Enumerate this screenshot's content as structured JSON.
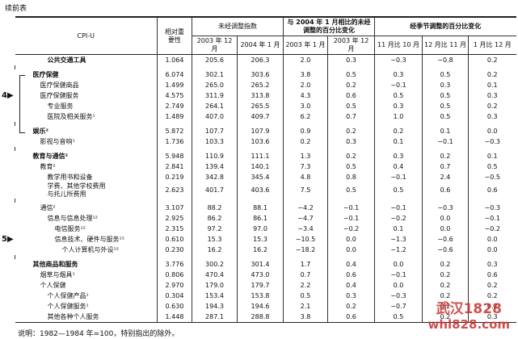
{
  "header": {
    "continued": "续前表"
  },
  "table": {
    "columns": {
      "item": "CPI-U",
      "weight": "相对重要性",
      "unadjusted_index": "未经调整指数",
      "pct_change_unadjusted": "与 2004 年 1 月相比的未经调整的百分比变化",
      "pct_change_seasonal": "经季节调整的百分比变化",
      "sub": [
        "2003 年 12 月",
        "2004 年 1 月",
        "2003 年 1 月",
        "2003 年 12 月",
        "11 月比 10 月",
        "12 月比 11 月",
        "1 月比 12 月"
      ]
    },
    "rows": [
      [
        "公共交通工具",
        "1.064",
        "205.6",
        "206.3",
        "2.0",
        "0.3",
        "−0.3",
        "−0.8",
        "0.2"
      ],
      [
        "医疗保健",
        "6.074",
        "302.1",
        "303.6",
        "3.8",
        "0.5",
        "0.3",
        "0.5",
        "0.2"
      ],
      [
        "医疗保健商品",
        "1.499",
        "265.0",
        "265.2",
        "2.0",
        "0.2",
        "−0.1",
        "0.3",
        "0.1"
      ],
      [
        "医疗保健服务",
        "4.575",
        "311.9",
        "313.8",
        "4.3",
        "0.6",
        "0.5",
        "0.5",
        "0.3"
      ],
      [
        "专业服务",
        "2.749",
        "264.1",
        "265.5",
        "3.0",
        "0.5",
        "0.3",
        "0.5",
        "0.2"
      ],
      [
        "医院及相关服务¹",
        "1.489",
        "407.0",
        "409.7",
        "6.2",
        "0.7",
        "1.0",
        "0.5",
        "0.3"
      ],
      [
        "娱乐²",
        "5.872",
        "107.7",
        "107.9",
        "0.9",
        "0.2",
        "0.2",
        "0.1",
        "0.0"
      ],
      [
        "影视与音响¹",
        "1.736",
        "103.3",
        "103.6",
        "0.2",
        "0.3",
        "0.1",
        "−0.1",
        "−0.3"
      ],
      [
        "教育与通信²",
        "5.948",
        "110.9",
        "111.1",
        "1.3",
        "0.2",
        "0.3",
        "0.2",
        "0.1"
      ],
      [
        "教育²",
        "2.841",
        "139.4",
        "140.1",
        "7.3",
        "0.5",
        "0.4",
        "0.7",
        "0.5"
      ],
      [
        "教学用书和设备",
        "0.219",
        "342.8",
        "345.4",
        "4.8",
        "0.8",
        "−0.1",
        "2.4",
        "−0.5"
      ],
      [
        "学费、其他学校费用与托儿所费用",
        "2.623",
        "401.7",
        "403.6",
        "7.5",
        "0.5",
        "0.5",
        "0.6",
        "0.6"
      ],
      [
        "通信²",
        "3.107",
        "88.2",
        "88.1",
        "−4.2",
        "−0.1",
        "−0.1",
        "−0.3",
        "−0.3"
      ],
      [
        "信息与信息处理¹²",
        "2.925",
        "86.2",
        "86.1",
        "−4.7",
        "−0.1",
        "−0.2",
        "0.0",
        "−0.1"
      ],
      [
        "电信服务¹²",
        "2.315",
        "97.2",
        "97.0",
        "−3.4",
        "−0.2",
        "0.1",
        "0.0",
        "−0.2"
      ],
      [
        "信息技术、硬件与服务¹⁵",
        "0.610",
        "15.3",
        "15.3",
        "−10.5",
        "0.0",
        "−1.3",
        "−0.6",
        "0.0"
      ],
      [
        "个人计算机与外设¹²",
        "0.230",
        "16.2",
        "16.2",
        "−18.2",
        "0.0",
        "−1.2",
        "−0.6",
        "0.0"
      ],
      [
        "其他商品和服务",
        "3.776",
        "300.2",
        "301.4",
        "1.7",
        "0.4",
        "0.0",
        "0.2",
        "0.3"
      ],
      [
        "烟草与烟具¹",
        "0.806",
        "470.4",
        "473.0",
        "0.7",
        "0.6",
        "−0.1",
        "0.2",
        "0.6"
      ],
      [
        "个人保健",
        "2.970",
        "179.0",
        "179.7",
        "2.2",
        "0.4",
        "0.0",
        "0.2",
        "0.2"
      ],
      [
        "个人保健产品¹",
        "0.304",
        "153.4",
        "153.8",
        "0.5",
        "0.3",
        "−0.3",
        "0.2",
        "0.2"
      ],
      [
        "个人保健服务¹",
        "0.630",
        "194.3",
        "194.6",
        "2.1",
        "0.2",
        "−0.7",
        "0.2",
        "0.2"
      ],
      [
        "其他各种个人服务",
        "1.448",
        "287.1",
        "288.8",
        "3.8",
        "0.6",
        "0.5",
        "0.2",
        "0.3"
      ]
    ]
  },
  "markers": [
    "4▶",
    "5▶"
  ],
  "note": "说明：1982—1984 年=100，特别指出的除外。",
  "watermark": [
    "武汉1828",
    "whl828.com"
  ]
}
